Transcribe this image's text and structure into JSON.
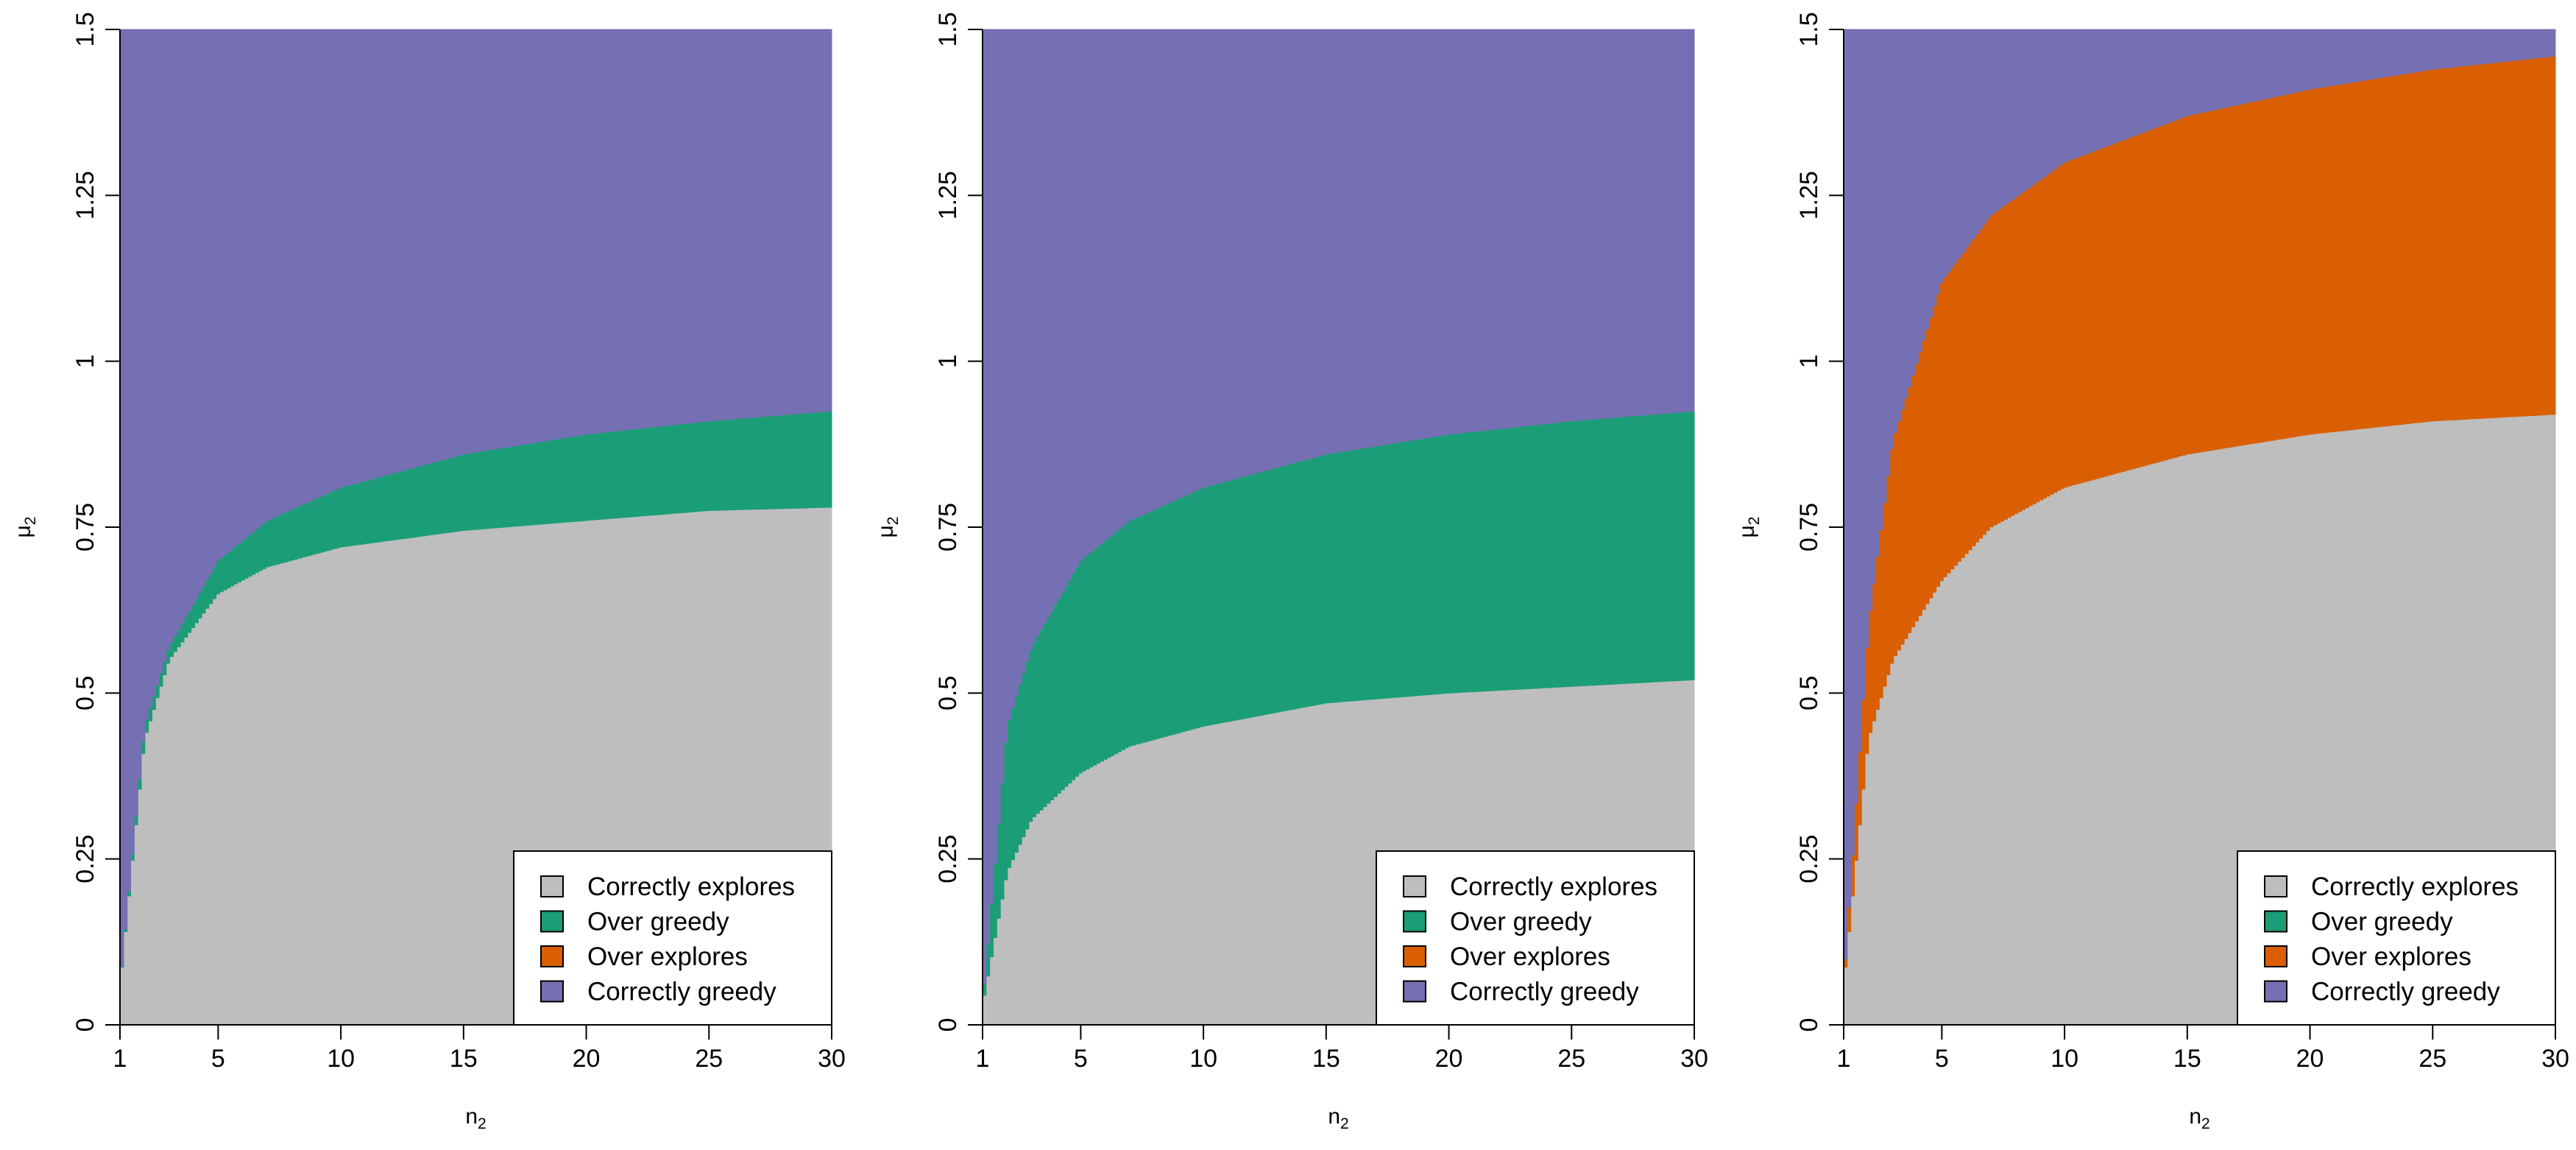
{
  "chart_data": [
    {
      "type": "area",
      "panel": "left",
      "x_range": [
        1,
        30
      ],
      "ylim": [
        0,
        1.5
      ],
      "xlabel": "n",
      "xlabel_sub": "2",
      "ylabel": "μ",
      "ylabel_sub": "2",
      "x_ticks": [
        1,
        5,
        10,
        15,
        20,
        25,
        30
      ],
      "x_tick_labels": [
        "1",
        "5",
        "10",
        "15",
        "20",
        "25",
        "30"
      ],
      "y_ticks": [
        0,
        0.25,
        0.5,
        0.75,
        1,
        1.25,
        1.5
      ],
      "y_tick_labels": [
        "0",
        "0.25",
        "0.5",
        "0.75",
        "1",
        "1.25",
        "1.5"
      ],
      "colors": {
        "explore": "#bebebe",
        "greedy_over": "#1b9e77",
        "explore_over": "#d95f02",
        "greedy_correct": "#7570b3"
      },
      "boundaries": {
        "lower": {
          "x": [
            1,
            2,
            3,
            5,
            7,
            10,
            15,
            20,
            25,
            30
          ],
          "y": [
            0.06,
            0.43,
            0.55,
            0.65,
            0.69,
            0.72,
            0.745,
            0.76,
            0.775,
            0.78
          ]
        },
        "upper": {
          "x": [
            1,
            2,
            3,
            5,
            7,
            10,
            15,
            20,
            25,
            30
          ],
          "y": [
            0.06,
            0.45,
            0.57,
            0.7,
            0.76,
            0.81,
            0.86,
            0.89,
            0.91,
            0.925
          ]
        }
      },
      "regions": [
        {
          "name": "Correctly explores",
          "fill": "#bebebe",
          "from": "bottom",
          "to": "lower"
        },
        {
          "name": "Over greedy",
          "fill": "#1b9e77",
          "from": "lower",
          "to": "upper"
        },
        {
          "name": "Correctly greedy",
          "fill": "#7570b3",
          "from": "upper",
          "to": "top"
        }
      ],
      "legend": {
        "position": "bottom-right",
        "entries": [
          {
            "label": "Correctly explores",
            "color": "#bebebe"
          },
          {
            "label": "Over greedy",
            "color": "#1b9e77"
          },
          {
            "label": "Over explores",
            "color": "#d95f02"
          },
          {
            "label": "Correctly greedy",
            "color": "#7570b3"
          }
        ]
      }
    },
    {
      "type": "area",
      "panel": "middle",
      "x_range": [
        1,
        30
      ],
      "ylim": [
        0,
        1.5
      ],
      "xlabel": "n",
      "xlabel_sub": "2",
      "ylabel": "μ",
      "ylabel_sub": "2",
      "x_ticks": [
        1,
        5,
        10,
        15,
        20,
        25,
        30
      ],
      "x_tick_labels": [
        "1",
        "5",
        "10",
        "15",
        "20",
        "25",
        "30"
      ],
      "y_ticks": [
        0,
        0.25,
        0.5,
        0.75,
        1,
        1.25,
        1.5
      ],
      "y_tick_labels": [
        "0",
        "0.25",
        "0.5",
        "0.75",
        "1",
        "1.25",
        "1.5"
      ],
      "boundaries": {
        "lower": {
          "x": [
            1,
            2,
            3,
            5,
            7,
            10,
            15,
            20,
            25,
            30
          ],
          "y": [
            0.03,
            0.23,
            0.31,
            0.38,
            0.42,
            0.45,
            0.485,
            0.5,
            0.51,
            0.52
          ]
        },
        "upper": {
          "x": [
            1,
            2,
            3,
            5,
            7,
            10,
            15,
            20,
            25,
            30
          ],
          "y": [
            0.03,
            0.45,
            0.57,
            0.7,
            0.76,
            0.81,
            0.86,
            0.89,
            0.91,
            0.925
          ]
        }
      },
      "regions": [
        {
          "name": "Correctly explores",
          "fill": "#bebebe",
          "from": "bottom",
          "to": "lower"
        },
        {
          "name": "Over greedy",
          "fill": "#1b9e77",
          "from": "lower",
          "to": "upper"
        },
        {
          "name": "Correctly greedy",
          "fill": "#7570b3",
          "from": "upper",
          "to": "top"
        }
      ],
      "legend": {
        "position": "bottom-right",
        "entries": [
          {
            "label": "Correctly explores",
            "color": "#bebebe"
          },
          {
            "label": "Over greedy",
            "color": "#1b9e77"
          },
          {
            "label": "Over explores",
            "color": "#d95f02"
          },
          {
            "label": "Correctly greedy",
            "color": "#7570b3"
          }
        ]
      }
    },
    {
      "type": "area",
      "panel": "right",
      "x_range": [
        1,
        30
      ],
      "ylim": [
        0,
        1.5
      ],
      "xlabel": "n",
      "xlabel_sub": "2",
      "ylabel": "μ",
      "ylabel_sub": "2",
      "x_ticks": [
        1,
        5,
        10,
        15,
        20,
        25,
        30
      ],
      "x_tick_labels": [
        "1",
        "5",
        "10",
        "15",
        "20",
        "25",
        "30"
      ],
      "y_ticks": [
        0,
        0.25,
        0.5,
        0.75,
        1,
        1.25,
        1.5
      ],
      "y_tick_labels": [
        "0",
        "0.25",
        "0.5",
        "0.75",
        "1",
        "1.25",
        "1.5"
      ],
      "boundaries": {
        "lower": {
          "x": [
            1,
            2,
            3,
            5,
            7,
            10,
            15,
            20,
            25,
            30
          ],
          "y": [
            0.06,
            0.43,
            0.55,
            0.67,
            0.75,
            0.81,
            0.86,
            0.89,
            0.91,
            0.92
          ]
        },
        "upper": {
          "x": [
            1,
            2,
            3,
            5,
            7,
            10,
            15,
            20,
            25,
            30
          ],
          "y": [
            0.06,
            0.6,
            0.88,
            1.12,
            1.22,
            1.3,
            1.37,
            1.41,
            1.44,
            1.46
          ]
        }
      },
      "regions": [
        {
          "name": "Correctly explores",
          "fill": "#bebebe",
          "from": "bottom",
          "to": "lower"
        },
        {
          "name": "Over explores",
          "fill": "#d95f02",
          "from": "lower",
          "to": "upper"
        },
        {
          "name": "Correctly greedy",
          "fill": "#7570b3",
          "from": "upper",
          "to": "top"
        }
      ],
      "legend": {
        "position": "bottom-right",
        "entries": [
          {
            "label": "Correctly explores",
            "color": "#bebebe"
          },
          {
            "label": "Over greedy",
            "color": "#1b9e77"
          },
          {
            "label": "Over explores",
            "color": "#d95f02"
          },
          {
            "label": "Correctly greedy",
            "color": "#7570b3"
          }
        ]
      }
    }
  ]
}
